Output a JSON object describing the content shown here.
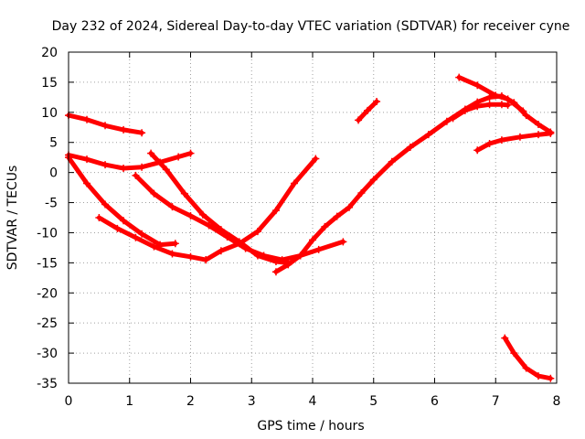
{
  "chart_data": {
    "type": "scatter",
    "title": "Day 232 of 2024, Sidereal Day-to-day VTEC variation (SDTVAR) for receiver cyne",
    "xlabel": "GPS time / hours",
    "ylabel": "SDTVAR / TECUs",
    "xlim": [
      0,
      8
    ],
    "ylim": [
      -35,
      20
    ],
    "xticks": [
      "0",
      "1",
      "2",
      "3",
      "4",
      "5",
      "6",
      "7",
      "8"
    ],
    "yticks": [
      "-35",
      "-30",
      "-25",
      "-20",
      "-15",
      "-10",
      "-5",
      "0",
      "5",
      "10",
      "15",
      "20"
    ],
    "grid": true,
    "color": "#ff0000",
    "marker": "plus",
    "series": [
      {
        "x": [
          0.0,
          0.3,
          0.6,
          0.9,
          1.2
        ],
        "y": [
          9.5,
          8.8,
          7.8,
          7.1,
          6.6
        ]
      },
      {
        "x": [
          0.0,
          0.3,
          0.6,
          0.9,
          1.2,
          1.5,
          1.8,
          2.0
        ],
        "y": [
          2.9,
          2.2,
          1.3,
          0.7,
          0.9,
          1.7,
          2.6,
          3.2
        ]
      },
      {
        "x": [
          0.0,
          0.3,
          0.6,
          0.9,
          1.2,
          1.5,
          1.75
        ],
        "y": [
          2.5,
          -1.8,
          -5.3,
          -8.0,
          -10.2,
          -12.0,
          -11.8
        ]
      },
      {
        "x": [
          0.5,
          0.8,
          1.1,
          1.4,
          1.7,
          2.0,
          2.25
        ],
        "y": [
          -7.5,
          -9.3,
          -10.8,
          -12.3,
          -13.5,
          -14.0,
          -14.5
        ]
      },
      {
        "x": [
          1.35,
          1.6,
          1.9,
          2.2,
          2.5,
          2.8,
          3.1,
          3.4,
          3.6
        ],
        "y": [
          3.2,
          0.5,
          -3.5,
          -7.0,
          -9.5,
          -11.5,
          -13.8,
          -14.8,
          -15.0
        ]
      },
      {
        "x": [
          1.1,
          1.4,
          1.7,
          2.0,
          2.3,
          2.6,
          2.9,
          3.2,
          3.5,
          3.8,
          4.1,
          4.5
        ],
        "y": [
          -0.5,
          -3.5,
          -5.7,
          -7.2,
          -8.8,
          -10.7,
          -12.6,
          -13.8,
          -14.5,
          -13.8,
          -12.8,
          -11.5
        ]
      },
      {
        "x": [
          2.25,
          2.5,
          2.8,
          3.1,
          3.4,
          3.7,
          4.05
        ],
        "y": [
          -14.5,
          -13.0,
          -11.8,
          -9.8,
          -6.3,
          -1.8,
          2.3
        ]
      },
      {
        "x": [
          3.4,
          3.6,
          3.8,
          4.0,
          4.2,
          4.4,
          4.6,
          4.8,
          5.0,
          5.3,
          5.6,
          5.9,
          6.2,
          6.5,
          6.7,
          6.9,
          7.1,
          7.3,
          7.5,
          7.7,
          7.9
        ],
        "y": [
          -16.5,
          -15.3,
          -13.8,
          -11.2,
          -9.0,
          -7.3,
          -5.8,
          -3.4,
          -1.2,
          1.8,
          4.2,
          6.3,
          8.5,
          10.5,
          11.7,
          12.5,
          12.7,
          11.6,
          9.5,
          8.0,
          6.7
        ]
      },
      {
        "x": [
          4.75,
          4.9,
          5.05
        ],
        "y": [
          8.7,
          10.3,
          11.8
        ]
      },
      {
        "x": [
          6.4,
          6.7,
          7.0,
          7.2,
          7.45
        ],
        "y": [
          15.8,
          14.5,
          12.8,
          12.2,
          10.2
        ]
      },
      {
        "x": [
          6.3,
          6.5,
          6.7,
          6.9,
          7.1,
          7.2
        ],
        "y": [
          9.0,
          10.3,
          11.0,
          11.3,
          11.3,
          11.2
        ]
      },
      {
        "x": [
          6.7,
          6.9,
          7.1,
          7.4,
          7.7,
          7.9
        ],
        "y": [
          3.7,
          4.8,
          5.4,
          5.9,
          6.3,
          6.5
        ]
      },
      {
        "x": [
          7.15,
          7.3,
          7.5,
          7.7,
          7.9
        ],
        "y": [
          -27.5,
          -30.0,
          -32.5,
          -33.8,
          -34.2
        ]
      }
    ]
  }
}
